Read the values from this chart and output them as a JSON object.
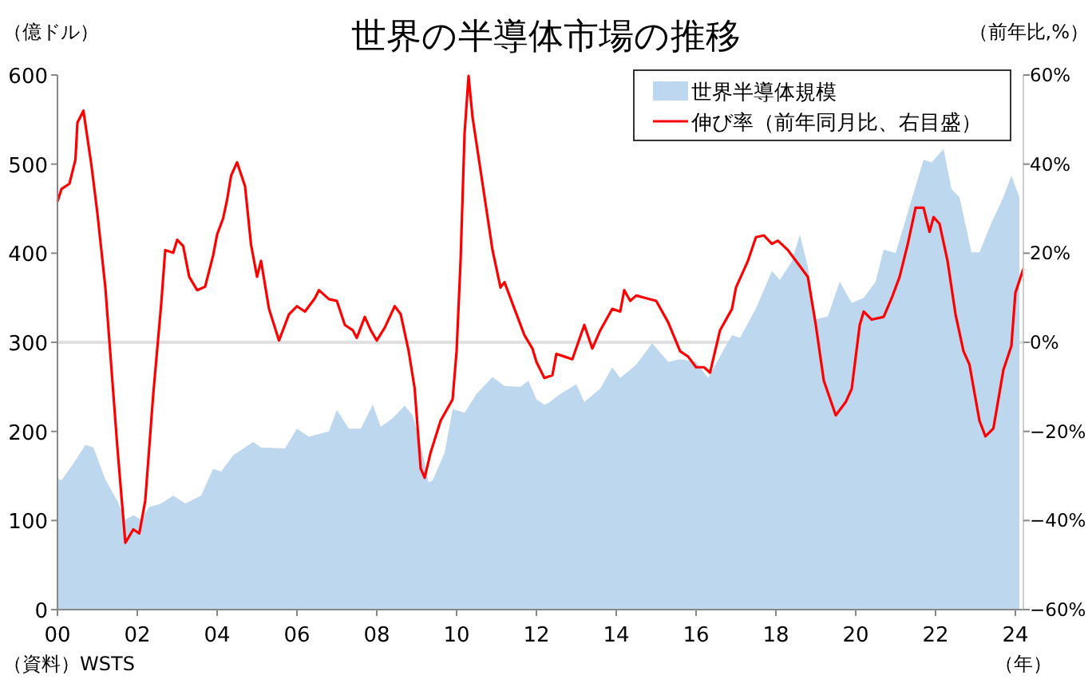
{
  "chart_data": {
    "type": "area",
    "title": "世界の半導体市場の推移",
    "ylabel": "（億ドル）",
    "y2label": "（前年比,%）",
    "xlabel": "（年）",
    "annotations": [
      "（資料）WSTS"
    ],
    "xlim": [
      2000,
      2024.2
    ],
    "xticks": [
      {
        "value": 2000,
        "label": "00"
      },
      {
        "value": 2002,
        "label": "02"
      },
      {
        "value": 2004,
        "label": "04"
      },
      {
        "value": 2006,
        "label": "06"
      },
      {
        "value": 2008,
        "label": "08"
      },
      {
        "value": 2010,
        "label": "10"
      },
      {
        "value": 2012,
        "label": "12"
      },
      {
        "value": 2014,
        "label": "14"
      },
      {
        "value": 2016,
        "label": "16"
      },
      {
        "value": 2018,
        "label": "18"
      },
      {
        "value": 2020,
        "label": "20"
      },
      {
        "value": 2022,
        "label": "22"
      },
      {
        "value": 2024,
        "label": "24"
      }
    ],
    "ylim": [
      0,
      600
    ],
    "yticks": [
      0,
      100,
      200,
      300,
      400,
      500,
      600
    ],
    "y2lim": [
      -60,
      60
    ],
    "y2ticks": [
      {
        "value": -60,
        "label": "−60%"
      },
      {
        "value": -40,
        "label": "−40%"
      },
      {
        "value": -20,
        "label": "−20%"
      },
      {
        "value": 0,
        "label": "0%"
      },
      {
        "value": 20,
        "label": "20%"
      },
      {
        "value": 40,
        "label": "40%"
      },
      {
        "value": 60,
        "label": "60%"
      }
    ],
    "ref_lines": [
      {
        "axis": "y2",
        "value": 0,
        "color": "#e0e0e0"
      }
    ],
    "legend": "top right",
    "series": [
      {
        "name": "世界半導体規模",
        "color": "#bdd7ee",
        "x": [
          2000.0,
          2000.1,
          2000.4,
          2000.7,
          2000.9,
          2001.2,
          2001.5,
          2001.7,
          2001.9,
          2002.1,
          2002.3,
          2002.6,
          2002.9,
          2003.2,
          2003.6,
          2003.9,
          2004.1,
          2004.4,
          2004.9,
          2005.1,
          2005.7,
          2006.0,
          2006.3,
          2006.8,
          2007.0,
          2007.3,
          2007.6,
          2007.9,
          2008.1,
          2008.4,
          2008.7,
          2008.9,
          2009.1,
          2009.3,
          2009.4,
          2009.7,
          2009.9,
          2010.2,
          2010.5,
          2010.9,
          2011.2,
          2011.6,
          2011.8,
          2012.0,
          2012.2,
          2012.3,
          2012.6,
          2013.0,
          2013.2,
          2013.6,
          2013.9,
          2014.1,
          2014.5,
          2014.9,
          2015.3,
          2015.6,
          2016.0,
          2016.3,
          2016.6,
          2016.9,
          2017.1,
          2017.5,
          2017.9,
          2018.1,
          2018.4,
          2018.6,
          2018.8,
          2019.0,
          2019.3,
          2019.6,
          2019.9,
          2020.2,
          2020.5,
          2020.7,
          2021.0,
          2021.3,
          2021.7,
          2021.9,
          2022.2,
          2022.4,
          2022.6,
          2022.9,
          2023.1,
          2023.4,
          2023.7,
          2023.9,
          2024.1
        ],
        "values": [
          147,
          145,
          164,
          185,
          182,
          146,
          122,
          101,
          106,
          101,
          115,
          119,
          128,
          119,
          128,
          158,
          155,
          173,
          188,
          182,
          181,
          203,
          194,
          200,
          224,
          203,
          203,
          230,
          205,
          215,
          229,
          218,
          185,
          143,
          145,
          176,
          225,
          221,
          242,
          261,
          251,
          250,
          257,
          236,
          230,
          232,
          242,
          253,
          233,
          248,
          272,
          260,
          275,
          299,
          278,
          281,
          278,
          260,
          284,
          308,
          305,
          338,
          380,
          370,
          391,
          421,
          385,
          326,
          329,
          368,
          344,
          350,
          368,
          404,
          400,
          445,
          505,
          502,
          517,
          472,
          463,
          401,
          401,
          434,
          463,
          487,
          463
        ]
      },
      {
        "name": "伸び率（前年同月比、右目盛）",
        "type": "line",
        "axis": "y2",
        "color": "#ff0000",
        "x": [
          2000.0,
          2000.1,
          2000.3,
          2000.45,
          2000.5,
          2000.65,
          2000.85,
          2001.0,
          2001.2,
          2001.35,
          2001.5,
          2001.7,
          2001.9,
          2002.05,
          2002.2,
          2002.4,
          2002.6,
          2002.7,
          2002.9,
          2003.0,
          2003.15,
          2003.3,
          2003.5,
          2003.7,
          2003.9,
          2004.0,
          2004.15,
          2004.25,
          2004.35,
          2004.5,
          2004.7,
          2004.85,
          2005.0,
          2005.1,
          2005.3,
          2005.55,
          2005.8,
          2006.0,
          2006.2,
          2006.45,
          2006.55,
          2006.8,
          2007.0,
          2007.2,
          2007.4,
          2007.5,
          2007.7,
          2007.85,
          2008.0,
          2008.2,
          2008.45,
          2008.6,
          2008.8,
          2008.95,
          2009.1,
          2009.2,
          2009.35,
          2009.6,
          2009.9,
          2010.0,
          2010.1,
          2010.2,
          2010.3,
          2010.4,
          2010.6,
          2010.9,
          2011.1,
          2011.2,
          2011.4,
          2011.7,
          2011.9,
          2012.0,
          2012.2,
          2012.4,
          2012.5,
          2012.7,
          2012.9,
          2013.2,
          2013.4,
          2013.6,
          2013.9,
          2014.1,
          2014.2,
          2014.35,
          2014.5,
          2014.75,
          2015.0,
          2015.3,
          2015.6,
          2015.8,
          2016.0,
          2016.2,
          2016.35,
          2016.6,
          2016.9,
          2017.0,
          2017.3,
          2017.5,
          2017.7,
          2017.9,
          2018.05,
          2018.3,
          2018.5,
          2018.8,
          2019.0,
          2019.2,
          2019.5,
          2019.75,
          2019.9,
          2020.1,
          2020.2,
          2020.4,
          2020.7,
          2020.9,
          2021.1,
          2021.3,
          2021.5,
          2021.7,
          2021.85,
          2021.95,
          2022.1,
          2022.3,
          2022.5,
          2022.7,
          2022.85,
          2023.1,
          2023.25,
          2023.45,
          2023.7,
          2023.9,
          2024.0,
          2024.2
        ],
        "values": [
          31.6,
          34.4,
          35.6,
          41,
          49.3,
          52,
          39.8,
          29,
          12.3,
          -5.6,
          -23.5,
          -45,
          -42,
          -42.9,
          -35.5,
          -11.6,
          8.7,
          20.7,
          20.1,
          23,
          21.6,
          14.7,
          11.7,
          12.5,
          19.5,
          24.2,
          27.8,
          32,
          37.4,
          40.4,
          35,
          21.9,
          14.7,
          18.3,
          7.5,
          0.4,
          6.3,
          8.1,
          6.9,
          9.9,
          11.7,
          9.7,
          9.3,
          3.9,
          2.7,
          1,
          5.7,
          2.7,
          0.4,
          3.3,
          8.1,
          6.3,
          -2,
          -10.4,
          -28.3,
          -30.4,
          -24.7,
          -17.6,
          -12.8,
          -2,
          18.3,
          46.9,
          59.8,
          50.5,
          38.6,
          20.7,
          12.3,
          13.5,
          8.7,
          1.6,
          -1.4,
          -4.4,
          -8,
          -7.4,
          -2.6,
          -3.2,
          -3.8,
          3.9,
          -1.4,
          2.7,
          7.5,
          6.9,
          11.7,
          9.3,
          10.5,
          9.9,
          9.3,
          4.5,
          -2,
          -3.2,
          -5.6,
          -5.6,
          -6.8,
          2.7,
          7.5,
          12.3,
          18.3,
          23.6,
          24,
          22.1,
          22.8,
          20.7,
          18.3,
          14.7,
          3.9,
          -8.6,
          -16.4,
          -13.4,
          -10.4,
          3.9,
          6.9,
          5.1,
          5.7,
          9.9,
          14.7,
          21.9,
          30.2,
          30.2,
          24.8,
          28.1,
          26.6,
          18.3,
          6.3,
          -2,
          -5,
          -17.6,
          -21.1,
          -19.3,
          -6.2,
          -0.8,
          11.1,
          16.5
        ]
      }
    ]
  }
}
